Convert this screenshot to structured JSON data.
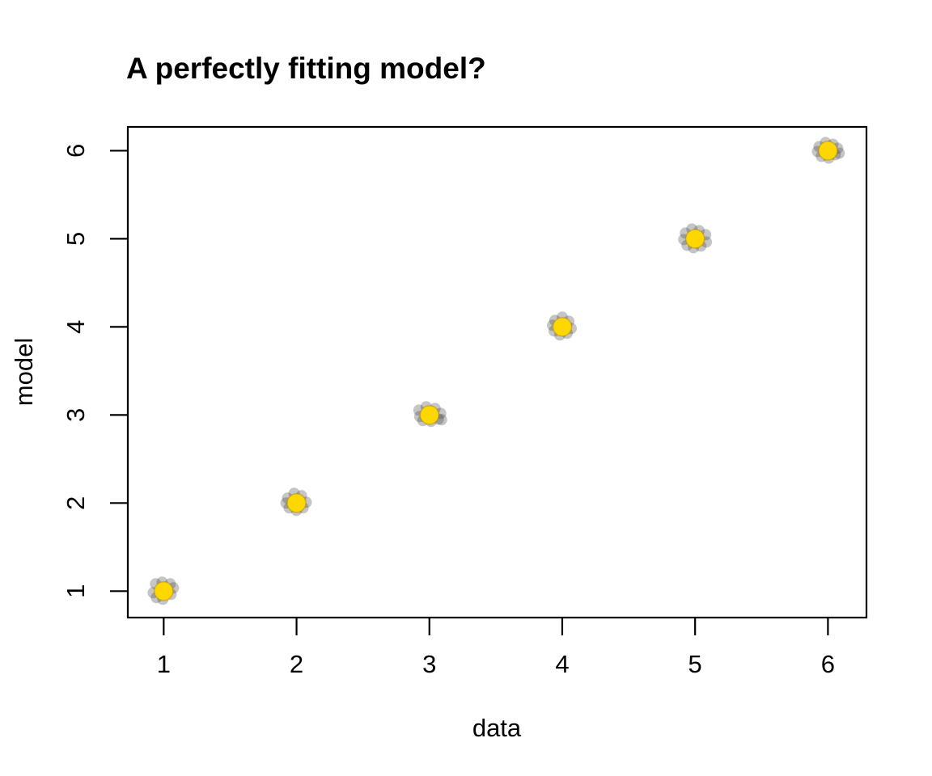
{
  "chart_data": {
    "type": "scatter",
    "title": "A perfectly fitting model?",
    "xlabel": "data",
    "ylabel": "model",
    "xlim": [
      0.73,
      6.29
    ],
    "ylim": [
      0.7,
      6.27
    ],
    "xticks": [
      "1",
      "2",
      "3",
      "4",
      "5",
      "6"
    ],
    "yticks": [
      "1",
      "2",
      "3",
      "4",
      "5",
      "6"
    ],
    "grid": false,
    "legend_position": "none",
    "series": [
      {
        "name": "replicate-draws",
        "marker": "circle",
        "color": "rgba(64,64,64,0.30)",
        "marker_radius_px": 7,
        "points": [
          [
            0.939,
            1.083
          ],
          [
            0.988,
            1.101
          ],
          [
            1.049,
            1.083
          ],
          [
            1.073,
            1.037
          ],
          [
            1.055,
            0.963
          ],
          [
            0.994,
            0.908
          ],
          [
            0.945,
            0.927
          ],
          [
            0.921,
            0.982
          ],
          [
            1.018,
            1.018
          ],
          [
            1.933,
            2.055
          ],
          [
            1.982,
            2.11
          ],
          [
            2.037,
            2.083
          ],
          [
            2.073,
            2.009
          ],
          [
            2.049,
            1.945
          ],
          [
            2.0,
            1.917
          ],
          [
            1.945,
            1.945
          ],
          [
            1.921,
            2.0
          ],
          [
            2.012,
            1.982
          ],
          [
            2.921,
            3.055
          ],
          [
            2.976,
            3.092
          ],
          [
            3.043,
            3.073
          ],
          [
            3.085,
            3.018
          ],
          [
            3.067,
            2.954
          ],
          [
            3.012,
            2.927
          ],
          [
            2.951,
            2.936
          ],
          [
            2.927,
            2.982
          ],
          [
            3.091,
            2.945
          ],
          [
            3.945,
            4.073
          ],
          [
            4.0,
            4.11
          ],
          [
            4.049,
            4.064
          ],
          [
            4.067,
            3.982
          ],
          [
            4.037,
            3.927
          ],
          [
            3.982,
            3.908
          ],
          [
            3.939,
            3.954
          ],
          [
            3.927,
            4.018
          ],
          [
            4.018,
            4.028
          ],
          [
            4.927,
            5.064
          ],
          [
            4.976,
            5.11
          ],
          [
            5.03,
            5.092
          ],
          [
            5.079,
            5.046
          ],
          [
            5.085,
            4.963
          ],
          [
            5.043,
            4.917
          ],
          [
            4.988,
            4.899
          ],
          [
            4.939,
            4.927
          ],
          [
            4.915,
            4.991
          ],
          [
            5.012,
            5.018
          ],
          [
            5.933,
            6.046
          ],
          [
            5.982,
            6.092
          ],
          [
            6.037,
            6.073
          ],
          [
            6.073,
            6.028
          ],
          [
            6.055,
            5.954
          ],
          [
            6.006,
            5.917
          ],
          [
            5.951,
            5.936
          ],
          [
            5.921,
            5.991
          ],
          [
            6.085,
            5.972
          ]
        ]
      },
      {
        "name": "observed-data",
        "marker": "circle",
        "color": "#FFD700",
        "stroke": "rgba(170,130,0,0.45)",
        "marker_radius_px": 11.5,
        "points": [
          [
            1,
            1
          ],
          [
            2,
            2
          ],
          [
            3,
            3
          ],
          [
            4,
            4
          ],
          [
            5,
            5
          ],
          [
            6,
            6
          ]
        ]
      }
    ]
  }
}
